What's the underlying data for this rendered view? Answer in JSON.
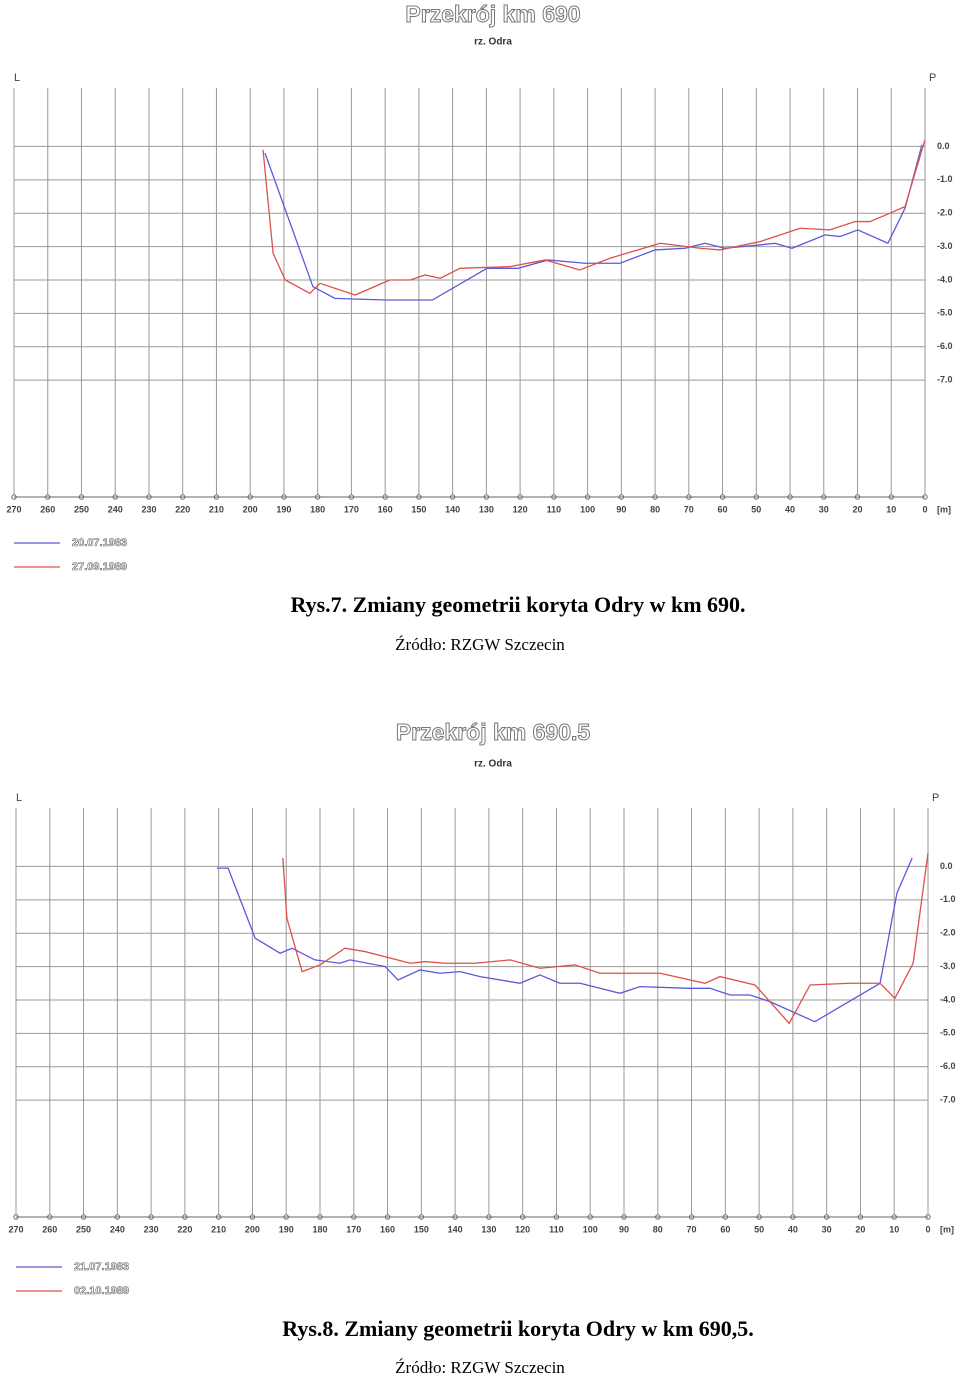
{
  "chart_data": [
    {
      "type": "line",
      "title": "Przekrój km 690",
      "subtitle": "rz. Odra",
      "left_label": "L",
      "right_label": "P",
      "x_unit": "[m]",
      "xlim": [
        270,
        0
      ],
      "xticks": [
        270,
        260,
        250,
        240,
        230,
        220,
        210,
        200,
        190,
        180,
        170,
        160,
        150,
        140,
        130,
        120,
        110,
        100,
        90,
        80,
        70,
        60,
        50,
        40,
        30,
        20,
        10,
        0
      ],
      "ylim": [
        -10.5,
        1.75
      ],
      "yticks": [
        {
          "value": 0,
          "label": "0.0"
        },
        {
          "value": -1,
          "label": "-1.0"
        },
        {
          "value": -2,
          "label": "-2.0"
        },
        {
          "value": -3,
          "label": "-3.0"
        },
        {
          "value": -4,
          "label": "-4.0"
        },
        {
          "value": -5,
          "label": "-5.0"
        },
        {
          "value": -6,
          "label": "-6.0"
        },
        {
          "value": -7,
          "label": "-7.0"
        }
      ],
      "grid": true,
      "series": [
        {
          "name": "20.07.1983",
          "color": "#5a5adc",
          "x": [
            195.6,
            181.4,
            174.9,
            160,
            146,
            129.8,
            120.6,
            111.7,
            100.8,
            90.4,
            80,
            71.1,
            65.2,
            59.3,
            48.9,
            44.5,
            39.4,
            29.6,
            25.2,
            19.9,
            11,
            5.9,
            0.9
          ],
          "values": [
            -0.2,
            -4.2,
            -4.55,
            -4.6,
            -4.6,
            -3.65,
            -3.65,
            -3.4,
            -3.5,
            -3.5,
            -3.1,
            -3.05,
            -2.9,
            -3.05,
            -2.95,
            -2.9,
            -3.05,
            -2.65,
            -2.7,
            -2.5,
            -2.9,
            -1.85,
            0.05
          ]
        },
        {
          "name": "27.09.1989",
          "color": "#e0504a",
          "x": [
            196.2,
            193.2,
            189.6,
            182.3,
            179.3,
            168.9,
            158.6,
            152.6,
            148.2,
            143.7,
            137.8,
            123,
            112.6,
            102.3,
            93.4,
            78.5,
            66.7,
            60.8,
            48.9,
            37,
            28.2,
            20.7,
            16.3,
            10.4,
            5.9,
            0
          ],
          "values": [
            -0.1,
            -3.2,
            -4.0,
            -4.4,
            -4.1,
            -4.45,
            -4.0,
            -4.0,
            -3.85,
            -3.95,
            -3.65,
            -3.6,
            -3.4,
            -3.7,
            -3.35,
            -2.9,
            -3.05,
            -3.1,
            -2.85,
            -2.45,
            -2.5,
            -2.25,
            -2.25,
            -2.0,
            -1.8,
            0.2
          ]
        }
      ]
    },
    {
      "type": "line",
      "title": "Przekrój km 690.5",
      "subtitle": "rz. Odra",
      "left_label": "L",
      "right_label": "P",
      "x_unit": "[m]",
      "xlim": [
        270,
        0
      ],
      "xticks": [
        270,
        260,
        250,
        240,
        230,
        220,
        210,
        200,
        190,
        180,
        170,
        160,
        150,
        140,
        130,
        120,
        110,
        100,
        90,
        80,
        70,
        60,
        50,
        40,
        30,
        20,
        10,
        0
      ],
      "ylim": [
        -10.5,
        1.75
      ],
      "yticks": [
        {
          "value": 0,
          "label": "0.0"
        },
        {
          "value": -1,
          "label": "-1.0"
        },
        {
          "value": -2,
          "label": "-2.0"
        },
        {
          "value": -3,
          "label": "-3.0"
        },
        {
          "value": -4,
          "label": "-4.0"
        },
        {
          "value": -5,
          "label": "-5.0"
        },
        {
          "value": -6,
          "label": "-6.0"
        },
        {
          "value": -7,
          "label": "-7.0"
        }
      ],
      "grid": true,
      "series": [
        {
          "name": "21.07.1983",
          "color": "#5a5adc",
          "x": [
            210.5,
            207.2,
            199.2,
            191.8,
            188.3,
            181.5,
            174.1,
            171.1,
            160.7,
            156.9,
            150.4,
            144.5,
            138.5,
            132.6,
            120.8,
            114.9,
            109,
            103,
            91.2,
            85.3,
            70.5,
            64.5,
            58.6,
            52.7,
            46.8,
            33.5,
            14.2,
            9.2,
            4.7
          ],
          "values": [
            -0.05,
            -0.05,
            -2.15,
            -2.6,
            -2.45,
            -2.8,
            -2.9,
            -2.8,
            -3.0,
            -3.4,
            -3.1,
            -3.2,
            -3.15,
            -3.3,
            -3.5,
            -3.25,
            -3.5,
            -3.5,
            -3.8,
            -3.6,
            -3.65,
            -3.65,
            -3.85,
            -3.85,
            -4.05,
            -4.65,
            -3.5,
            -0.8,
            0.25
          ]
        },
        {
          "name": "02.10.1989",
          "color": "#e0504a",
          "x": [
            191,
            189.8,
            185.3,
            180,
            172.6,
            166.7,
            153.3,
            148.9,
            143,
            134.1,
            123.7,
            114.9,
            104.5,
            97.1,
            79.3,
            66,
            61.6,
            51.2,
            41.1,
            34.9,
            23.1,
            14.2,
            9.8,
            4.4,
            0
          ],
          "values": [
            0.25,
            -1.55,
            -3.15,
            -2.95,
            -2.45,
            -2.55,
            -2.9,
            -2.85,
            -2.9,
            -2.9,
            -2.8,
            -3.05,
            -2.95,
            -3.2,
            -3.2,
            -3.5,
            -3.3,
            -3.55,
            -4.7,
            -3.55,
            -3.5,
            -3.5,
            -3.95,
            -2.9,
            0.4
          ]
        }
      ]
    }
  ],
  "captions": [
    {
      "title": "Rys.7. Zmiany geometrii koryta Odry w km 690.",
      "source": "Źródło: RZGW Szczecin"
    },
    {
      "title": "Rys.8. Zmiany geometrii koryta Odry w km 690,5.",
      "source": "Źródło: RZGW Szczecin"
    }
  ]
}
